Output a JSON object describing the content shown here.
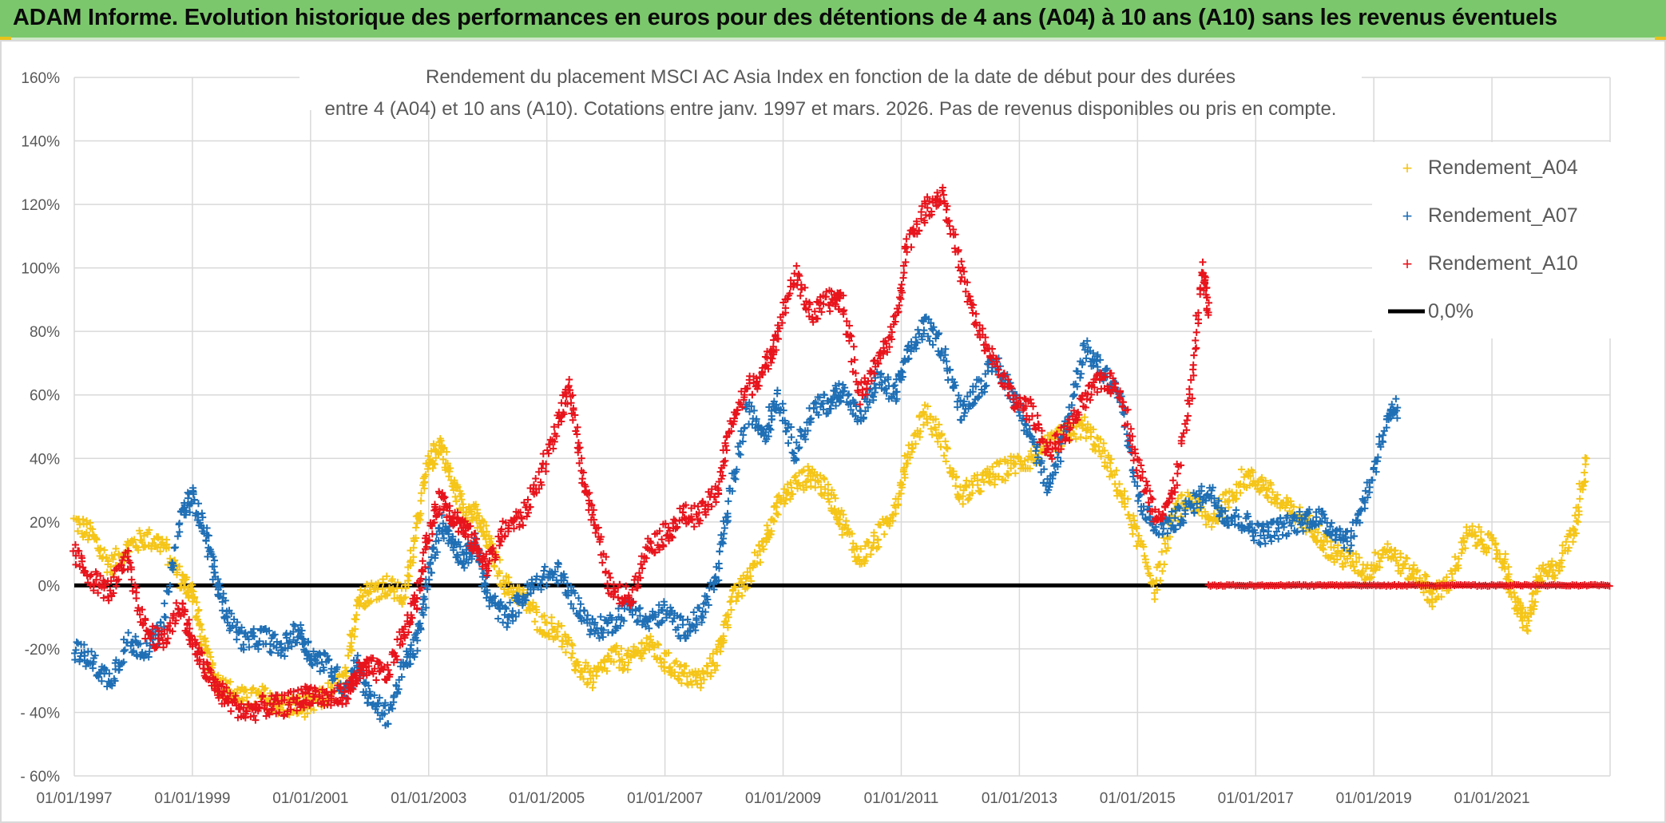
{
  "banner": {
    "title": "ADAM Informe. Evolution historique des performances en euros pour des détentions de 4 ans (A04) à 10 ans (A10) sans les revenus éventuels",
    "color": "#7bc86c"
  },
  "chart_data": {
    "type": "scatter",
    "title_line1": "Rendement du placement MSCI AC Asia Index en fonction de la date de début pour des durées",
    "title_line2": "entre 4 (A04) et 10 ans (A10). Cotations entre janv. 1997 et mars. 2026. Pas de revenus disponibles ou pris en compte.",
    "xlabel": "",
    "ylabel": "",
    "xlim": [
      1997.0,
      2023.0
    ],
    "ylim": [
      -60,
      160
    ],
    "x_ticks": [
      1997,
      1999,
      2001,
      2003,
      2005,
      2007,
      2009,
      2011,
      2013,
      2015,
      2017,
      2019,
      2021
    ],
    "x_tick_labels": [
      "01/01/1997",
      "01/01/1999",
      "01/01/2001",
      "01/01/2003",
      "01/01/2005",
      "01/01/2007",
      "01/01/2009",
      "01/01/2011",
      "01/01/2013",
      "01/01/2015",
      "01/01/2017",
      "01/01/2019",
      "01/01/2021"
    ],
    "y_ticks": [
      -60,
      -40,
      -20,
      0,
      20,
      40,
      60,
      80,
      100,
      120,
      140,
      160
    ],
    "y_tick_labels": [
      "- 60%",
      "- 40%",
      "-20%",
      "0%",
      "20%",
      "40%",
      "60%",
      "80%",
      "100%",
      "120%",
      "140%",
      "160%"
    ],
    "grid": true,
    "legend_position": "top-right",
    "series": [
      {
        "name": "Rendement_A04",
        "color": "#f5c518",
        "marker": "+",
        "points": [
          [
            1997.0,
            20
          ],
          [
            1997.3,
            16
          ],
          [
            1997.6,
            6
          ],
          [
            1997.9,
            12
          ],
          [
            1998.2,
            15
          ],
          [
            1998.5,
            13
          ],
          [
            1998.8,
            2
          ],
          [
            1999.0,
            -2
          ],
          [
            1999.2,
            -20
          ],
          [
            1999.4,
            -30
          ],
          [
            1999.6,
            -33
          ],
          [
            1999.9,
            -36
          ],
          [
            2000.2,
            -35
          ],
          [
            2000.5,
            -38
          ],
          [
            2000.8,
            -38
          ],
          [
            2001.0,
            -38
          ],
          [
            2001.3,
            -34
          ],
          [
            2001.6,
            -29
          ],
          [
            2001.8,
            -5
          ],
          [
            2002.0,
            -2
          ],
          [
            2002.3,
            0
          ],
          [
            2002.6,
            -4
          ],
          [
            2002.8,
            20
          ],
          [
            2003.0,
            38
          ],
          [
            2003.2,
            45
          ],
          [
            2003.4,
            32
          ],
          [
            2003.6,
            24
          ],
          [
            2003.8,
            22
          ],
          [
            2004.0,
            14
          ],
          [
            2004.3,
            0
          ],
          [
            2004.6,
            -4
          ],
          [
            2004.9,
            -12
          ],
          [
            2005.2,
            -14
          ],
          [
            2005.5,
            -25
          ],
          [
            2005.8,
            -30
          ],
          [
            2006.1,
            -22
          ],
          [
            2006.4,
            -24
          ],
          [
            2006.7,
            -18
          ],
          [
            2007.0,
            -24
          ],
          [
            2007.3,
            -28
          ],
          [
            2007.6,
            -30
          ],
          [
            2007.9,
            -22
          ],
          [
            2008.1,
            -6
          ],
          [
            2008.4,
            2
          ],
          [
            2008.7,
            15
          ],
          [
            2008.9,
            25
          ],
          [
            2009.2,
            32
          ],
          [
            2009.5,
            35
          ],
          [
            2009.8,
            28
          ],
          [
            2010.0,
            20
          ],
          [
            2010.3,
            8
          ],
          [
            2010.6,
            15
          ],
          [
            2010.9,
            25
          ],
          [
            2011.1,
            40
          ],
          [
            2011.4,
            55
          ],
          [
            2011.7,
            45
          ],
          [
            2012.0,
            28
          ],
          [
            2012.3,
            32
          ],
          [
            2012.6,
            35
          ],
          [
            2012.9,
            38
          ],
          [
            2013.2,
            40
          ],
          [
            2013.5,
            44
          ],
          [
            2013.8,
            48
          ],
          [
            2014.1,
            50
          ],
          [
            2014.4,
            42
          ],
          [
            2014.7,
            30
          ],
          [
            2015.0,
            15
          ],
          [
            2015.3,
            -1
          ],
          [
            2015.6,
            22
          ],
          [
            2015.9,
            28
          ],
          [
            2016.2,
            20
          ],
          [
            2016.5,
            26
          ],
          [
            2016.8,
            34
          ],
          [
            2017.1,
            32
          ],
          [
            2017.4,
            26
          ],
          [
            2017.7,
            22
          ],
          [
            2018.0,
            18
          ],
          [
            2018.3,
            10
          ],
          [
            2018.6,
            8
          ],
          [
            2018.9,
            4
          ],
          [
            2019.2,
            12
          ],
          [
            2019.5,
            6
          ],
          [
            2019.8,
            2
          ],
          [
            2020.0,
            -4
          ],
          [
            2020.3,
            2
          ],
          [
            2020.6,
            16
          ],
          [
            2020.9,
            14
          ],
          [
            2021.2,
            8
          ],
          [
            2021.4,
            -6
          ],
          [
            2021.6,
            -12
          ],
          [
            2021.8,
            2
          ],
          [
            2022.1,
            6
          ],
          [
            2022.4,
            18
          ],
          [
            2022.6,
            40
          ]
        ]
      },
      {
        "name": "Rendement_A07",
        "color": "#1f6fb5",
        "marker": "+",
        "points": [
          [
            1997.0,
            -20
          ],
          [
            1997.3,
            -24
          ],
          [
            1997.6,
            -30
          ],
          [
            1997.9,
            -18
          ],
          [
            1998.2,
            -20
          ],
          [
            1998.5,
            -14
          ],
          [
            1998.8,
            22
          ],
          [
            1999.0,
            28
          ],
          [
            1999.2,
            18
          ],
          [
            1999.4,
            2
          ],
          [
            1999.6,
            -10
          ],
          [
            1999.9,
            -18
          ],
          [
            2000.2,
            -16
          ],
          [
            2000.5,
            -20
          ],
          [
            2000.8,
            -14
          ],
          [
            2001.0,
            -22
          ],
          [
            2001.3,
            -25
          ],
          [
            2001.6,
            -33
          ],
          [
            2001.8,
            -24
          ],
          [
            2002.0,
            -36
          ],
          [
            2002.3,
            -41
          ],
          [
            2002.6,
            -25
          ],
          [
            2002.8,
            -18
          ],
          [
            2003.0,
            2
          ],
          [
            2003.2,
            20
          ],
          [
            2003.4,
            14
          ],
          [
            2003.6,
            8
          ],
          [
            2003.8,
            14
          ],
          [
            2004.0,
            -4
          ],
          [
            2004.3,
            -10
          ],
          [
            2004.6,
            -4
          ],
          [
            2004.9,
            2
          ],
          [
            2005.2,
            4
          ],
          [
            2005.5,
            -6
          ],
          [
            2005.8,
            -14
          ],
          [
            2006.1,
            -12
          ],
          [
            2006.4,
            -6
          ],
          [
            2006.7,
            -12
          ],
          [
            2007.0,
            -8
          ],
          [
            2007.3,
            -14
          ],
          [
            2007.6,
            -10
          ],
          [
            2007.9,
            4
          ],
          [
            2008.1,
            28
          ],
          [
            2008.4,
            55
          ],
          [
            2008.7,
            48
          ],
          [
            2008.9,
            60
          ],
          [
            2009.2,
            42
          ],
          [
            2009.5,
            55
          ],
          [
            2009.8,
            58
          ],
          [
            2010.0,
            62
          ],
          [
            2010.3,
            52
          ],
          [
            2010.6,
            65
          ],
          [
            2010.9,
            60
          ],
          [
            2011.1,
            72
          ],
          [
            2011.4,
            82
          ],
          [
            2011.7,
            75
          ],
          [
            2012.0,
            55
          ],
          [
            2012.3,
            62
          ],
          [
            2012.6,
            70
          ],
          [
            2012.9,
            60
          ],
          [
            2013.2,
            48
          ],
          [
            2013.5,
            28
          ],
          [
            2013.8,
            52
          ],
          [
            2014.1,
            75
          ],
          [
            2014.4,
            68
          ],
          [
            2014.7,
            60
          ],
          [
            2015.0,
            28
          ],
          [
            2015.3,
            18
          ],
          [
            2015.6,
            20
          ],
          [
            2015.9,
            25
          ],
          [
            2016.2,
            30
          ],
          [
            2016.5,
            22
          ],
          [
            2016.8,
            20
          ],
          [
            2017.1,
            16
          ],
          [
            2017.4,
            18
          ],
          [
            2017.7,
            20
          ],
          [
            2018.0,
            22
          ],
          [
            2018.3,
            18
          ],
          [
            2018.6,
            14
          ],
          [
            2018.9,
            30
          ],
          [
            2019.2,
            50
          ],
          [
            2019.4,
            56
          ]
        ]
      },
      {
        "name": "Rendement_A10",
        "color": "#e8141c",
        "marker": "+",
        "points": [
          [
            1997.0,
            10
          ],
          [
            1997.3,
            2
          ],
          [
            1997.6,
            -2
          ],
          [
            1997.9,
            8
          ],
          [
            1998.2,
            -14
          ],
          [
            1998.5,
            -18
          ],
          [
            1998.8,
            -6
          ],
          [
            1999.0,
            -18
          ],
          [
            1999.2,
            -26
          ],
          [
            1999.4,
            -32
          ],
          [
            1999.6,
            -36
          ],
          [
            1999.9,
            -40
          ],
          [
            2000.2,
            -38
          ],
          [
            2000.5,
            -38
          ],
          [
            2000.8,
            -36
          ],
          [
            2001.0,
            -34
          ],
          [
            2001.3,
            -36
          ],
          [
            2001.6,
            -34
          ],
          [
            2001.8,
            -28
          ],
          [
            2002.0,
            -26
          ],
          [
            2002.3,
            -28
          ],
          [
            2002.6,
            -14
          ],
          [
            2002.8,
            -4
          ],
          [
            2003.0,
            16
          ],
          [
            2003.2,
            28
          ],
          [
            2003.4,
            22
          ],
          [
            2003.6,
            18
          ],
          [
            2003.8,
            12
          ],
          [
            2004.0,
            6
          ],
          [
            2004.3,
            18
          ],
          [
            2004.6,
            22
          ],
          [
            2004.9,
            35
          ],
          [
            2005.2,
            52
          ],
          [
            2005.4,
            62
          ],
          [
            2005.6,
            36
          ],
          [
            2005.8,
            20
          ],
          [
            2006.1,
            -2
          ],
          [
            2006.4,
            -4
          ],
          [
            2006.7,
            12
          ],
          [
            2007.0,
            16
          ],
          [
            2007.3,
            22
          ],
          [
            2007.6,
            22
          ],
          [
            2007.9,
            30
          ],
          [
            2008.1,
            50
          ],
          [
            2008.4,
            62
          ],
          [
            2008.7,
            68
          ],
          [
            2008.9,
            80
          ],
          [
            2009.2,
            98
          ],
          [
            2009.5,
            85
          ],
          [
            2009.8,
            90
          ],
          [
            2010.0,
            90
          ],
          [
            2010.3,
            60
          ],
          [
            2010.6,
            70
          ],
          [
            2010.9,
            82
          ],
          [
            2011.1,
            108
          ],
          [
            2011.4,
            118
          ],
          [
            2011.7,
            124
          ],
          [
            2012.0,
            100
          ],
          [
            2012.3,
            80
          ],
          [
            2012.6,
            70
          ],
          [
            2012.9,
            58
          ],
          [
            2013.2,
            55
          ],
          [
            2013.5,
            42
          ],
          [
            2013.8,
            48
          ],
          [
            2014.1,
            58
          ],
          [
            2014.4,
            65
          ],
          [
            2014.7,
            62
          ],
          [
            2015.0,
            38
          ],
          [
            2015.3,
            22
          ],
          [
            2015.6,
            28
          ],
          [
            2015.9,
            60
          ],
          [
            2016.1,
            100
          ],
          [
            2016.2,
            86
          ]
        ]
      },
      {
        "name": "0,0%",
        "color": "#000000",
        "marker": "line",
        "x": [
          1997.0,
          2023.0
        ],
        "values": [
          0,
          0
        ]
      }
    ],
    "zero_cluster": {
      "name": "Rendement_A10",
      "x_start": 2016.2,
      "x_end": 2023.0,
      "value": 0
    }
  }
}
